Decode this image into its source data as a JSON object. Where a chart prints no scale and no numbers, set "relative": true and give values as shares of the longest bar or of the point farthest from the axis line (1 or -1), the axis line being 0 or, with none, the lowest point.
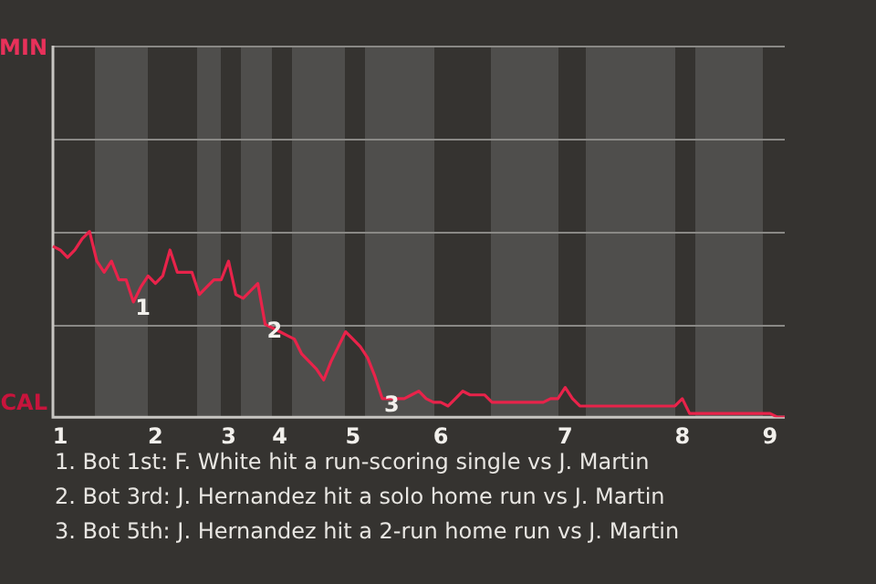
{
  "chart_data": {
    "type": "line",
    "relative": true,
    "categories": [
      null,
      "1",
      null,
      null,
      null,
      null,
      null,
      null,
      null,
      null,
      null,
      null,
      null,
      null,
      "2",
      null,
      null,
      null,
      null,
      null,
      null,
      null,
      null,
      null,
      "3",
      null,
      null,
      null,
      null,
      null,
      null,
      "4",
      null,
      null,
      null,
      null,
      null,
      null,
      null,
      null,
      null,
      "5",
      null,
      null,
      null,
      null,
      null,
      null,
      null,
      null,
      null,
      null,
      null,
      "6",
      null,
      null,
      null,
      null,
      null,
      null,
      null,
      null,
      null,
      null,
      null,
      null,
      null,
      null,
      null,
      null,
      "7",
      null,
      null,
      null,
      null,
      null,
      null,
      null,
      null,
      null,
      null,
      null,
      null,
      null,
      null,
      null,
      "8",
      null,
      null,
      null,
      null,
      null,
      null,
      null,
      null,
      null,
      null,
      null,
      "9",
      null,
      null
    ],
    "series": [
      {
        "color": "#e8234a",
        "values": [
          0.92,
          0.9,
          0.86,
          0.9,
          0.96,
          1,
          0.84,
          0.78,
          0.84,
          0.74,
          0.74,
          0.62,
          0.7,
          0.76,
          0.72,
          0.76,
          0.9,
          0.78,
          0.78,
          0.78,
          0.66,
          0.7,
          0.74,
          0.74,
          0.84,
          0.66,
          0.64,
          0.68,
          0.72,
          0.5,
          0.48,
          0.46,
          0.44,
          0.42,
          0.34,
          0.3,
          0.26,
          0.2,
          0.3,
          0.38,
          0.46,
          0.42,
          0.38,
          0.32,
          0.22,
          0.1,
          0.1,
          0.1,
          0.1,
          0.12,
          0.14,
          0.1,
          0.08,
          0.08,
          0.06,
          0.1,
          0.14,
          0.12,
          0.12,
          0.12,
          0.08,
          0.08,
          0.08,
          0.08,
          0.08,
          0.08,
          0.08,
          0.08,
          0.1,
          0.1,
          0.16,
          0.1,
          0.06,
          0.06,
          0.06,
          0.06,
          0.06,
          0.06,
          0.06,
          0.06,
          0.06,
          0.06,
          0.06,
          0.06,
          0.06,
          0.06,
          0.1,
          0.02,
          0.02,
          0.02,
          0.02,
          0.02,
          0.02,
          0.02,
          0.02,
          0.02,
          0.02,
          0.02,
          0.02,
          0,
          0
        ]
      }
    ],
    "annotations": [
      "MIN",
      "CAL",
      {
        "text": "1",
        "y": 0.62
      },
      {
        "text": "2",
        "y": 0.5
      },
      {
        "text": "3",
        "y": 0.1
      },
      "1. Bot 1st: F. White hit a run-scoring single vs J. Martin",
      "2. Bot 3rd: J. Hernandez hit a solo home run vs J. Martin",
      "3. Bot 5th: J. Hernandez hit a 2-run home run vs J. Martin"
    ]
  }
}
